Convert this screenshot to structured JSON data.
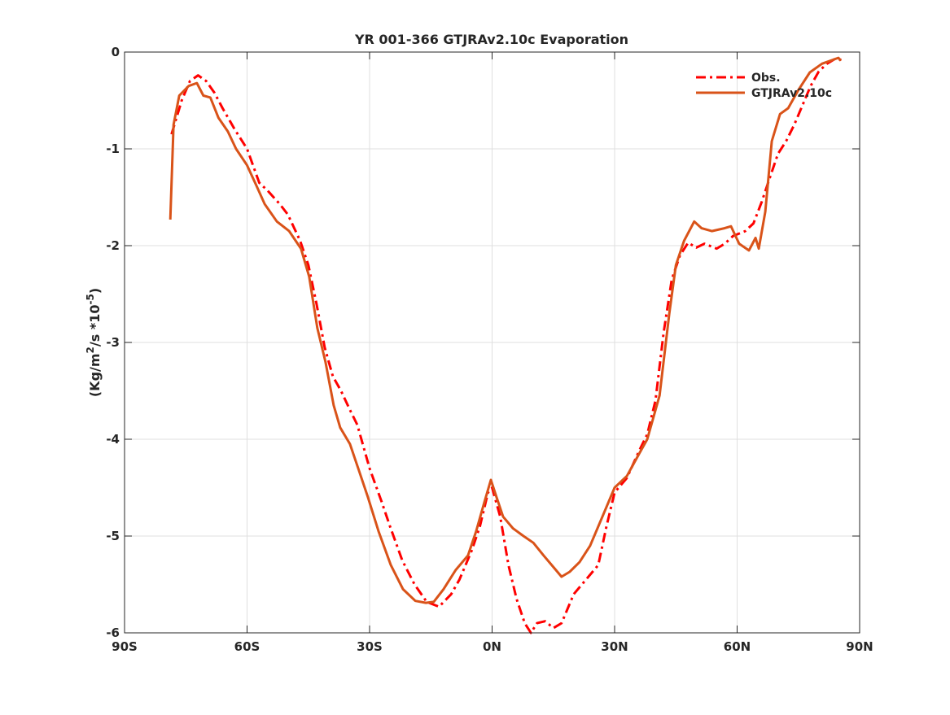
{
  "chart_data": {
    "type": "line",
    "title": "YR 001-366 GTJRAv2.10c Evaporation",
    "xlabel": "",
    "ylabel_parts": [
      "(Kg/m",
      "2",
      "/s *10",
      "-5",
      ")"
    ],
    "xlim": [
      -90,
      90
    ],
    "ylim": [
      -6,
      0
    ],
    "xticks": [
      -90,
      -60,
      -30,
      0,
      30,
      60,
      90
    ],
    "xtick_labels": [
      "90S",
      "60S",
      "30S",
      "0N",
      "30N",
      "60N",
      "90N"
    ],
    "yticks": [
      0,
      -1,
      -2,
      -3,
      -4,
      -5,
      -6
    ],
    "ytick_labels": [
      "0",
      "-1",
      "-2",
      "-3",
      "-4",
      "-5",
      "-6"
    ],
    "grid": true,
    "legend_position": "top-right",
    "series": [
      {
        "name": "Obs.",
        "color": "#ff0000",
        "style": "dash-dot",
        "x": [
          -78.5,
          -76,
          -74,
          -72,
          -70,
          -68,
          -66,
          -63,
          -60,
          -57,
          -55,
          -52,
          -50,
          -47,
          -45,
          -43,
          -41,
          -39,
          -37,
          -35,
          -33,
          -30,
          -27,
          -25,
          -22,
          -19,
          -16,
          -13,
          -10,
          -8,
          -5,
          -3,
          -1,
          0,
          2,
          4,
          6,
          8,
          9.5,
          11,
          13,
          15,
          17,
          20,
          23,
          26,
          28,
          30,
          33,
          36,
          38,
          40,
          42,
          44,
          46,
          48,
          50,
          52,
          55,
          57,
          59,
          62,
          64,
          66,
          68,
          70,
          72,
          74,
          76,
          78,
          80,
          82,
          84,
          85.5
        ],
        "y": [
          -0.85,
          -0.5,
          -0.3,
          -0.24,
          -0.3,
          -0.42,
          -0.58,
          -0.8,
          -1.0,
          -1.35,
          -1.43,
          -1.57,
          -1.68,
          -1.95,
          -2.2,
          -2.6,
          -3.05,
          -3.35,
          -3.5,
          -3.68,
          -3.85,
          -4.3,
          -4.65,
          -4.9,
          -5.25,
          -5.5,
          -5.68,
          -5.73,
          -5.6,
          -5.45,
          -5.15,
          -4.9,
          -4.55,
          -4.5,
          -4.8,
          -5.3,
          -5.65,
          -5.9,
          -6.0,
          -5.9,
          -5.88,
          -5.95,
          -5.9,
          -5.6,
          -5.45,
          -5.3,
          -4.9,
          -4.55,
          -4.4,
          -4.12,
          -3.95,
          -3.6,
          -2.9,
          -2.35,
          -2.1,
          -1.97,
          -2.02,
          -1.98,
          -2.03,
          -1.98,
          -1.9,
          -1.85,
          -1.77,
          -1.55,
          -1.3,
          -1.05,
          -0.92,
          -0.75,
          -0.55,
          -0.35,
          -0.2,
          -0.12,
          -0.07,
          -0.08
        ]
      },
      {
        "name": "GTJRAv2.10c",
        "color": "#d95319",
        "style": "solid",
        "x": [
          -78.8,
          -78,
          -76.6,
          -74.3,
          -72.3,
          -70.7,
          -69,
          -67,
          -64.7,
          -62.7,
          -60,
          -57.7,
          -55.7,
          -52.7,
          -49.7,
          -46.8,
          -44.8,
          -42.8,
          -40.8,
          -38.8,
          -37.2,
          -34.8,
          -32.8,
          -30.4,
          -27.8,
          -24.8,
          -21.8,
          -18.8,
          -16.2,
          -14.3,
          -11.9,
          -8.9,
          -5.9,
          -3.9,
          -1.9,
          -0.3,
          1.1,
          2.7,
          5.1,
          7.7,
          10.1,
          12.6,
          15,
          17,
          19,
          21.4,
          24,
          27,
          30,
          33,
          36,
          38,
          41,
          43.4,
          45,
          47,
          49.5,
          51.3,
          53.8,
          56.9,
          58.5,
          60.5,
          62.9,
          64.5,
          65.3,
          66.9,
          68.5,
          70.5,
          72.5,
          74.9,
          77.8,
          80.8,
          84.8,
          85.4
        ],
        "y": [
          -1.73,
          -0.75,
          -0.45,
          -0.35,
          -0.32,
          -0.45,
          -0.47,
          -0.68,
          -0.82,
          -1.0,
          -1.17,
          -1.38,
          -1.57,
          -1.75,
          -1.85,
          -2.03,
          -2.32,
          -2.85,
          -3.2,
          -3.65,
          -3.88,
          -4.05,
          -4.3,
          -4.6,
          -4.95,
          -5.3,
          -5.55,
          -5.67,
          -5.69,
          -5.68,
          -5.55,
          -5.35,
          -5.2,
          -4.95,
          -4.65,
          -4.42,
          -4.6,
          -4.8,
          -4.92,
          -5.0,
          -5.07,
          -5.2,
          -5.32,
          -5.42,
          -5.37,
          -5.27,
          -5.1,
          -4.8,
          -4.5,
          -4.38,
          -4.15,
          -4.0,
          -3.55,
          -2.7,
          -2.2,
          -1.95,
          -1.75,
          -1.82,
          -1.85,
          -1.82,
          -1.8,
          -1.98,
          -2.05,
          -1.92,
          -2.03,
          -1.65,
          -0.92,
          -0.64,
          -0.58,
          -0.4,
          -0.21,
          -0.12,
          -0.06,
          -0.09
        ]
      }
    ]
  }
}
